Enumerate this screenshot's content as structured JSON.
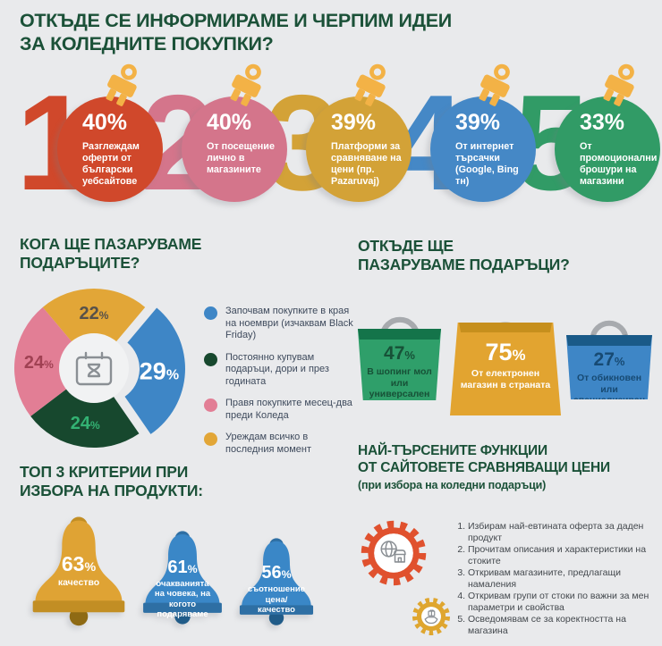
{
  "page": {
    "background": "#E9EAEC",
    "heading_color": "#1B5138"
  },
  "title": {
    "line1_regular": "ОТКЪДЕ ",
    "line1_bold": "СЕ ИНФОРМИРАМЕ И ЧЕРПИМ ИДЕИ",
    "line2": "ЗА КОЛЕДНИТЕ ПОКУПКИ?"
  },
  "sources": {
    "items": [
      {
        "num": "1",
        "pct": "40%",
        "desc": "Разглеждам оферти от български уебсайтове",
        "color": "#D0482B",
        "cap_color": "#F3B246"
      },
      {
        "num": "2",
        "pct": "40%",
        "desc": "От посещение лично в магазините",
        "color": "#D4758B",
        "cap_color": "#F3B246"
      },
      {
        "num": "3",
        "pct": "39%",
        "desc": "Платформи за сравняване на цени (пр. Pazaruvaj)",
        "color": "#D3A237",
        "cap_color": "#F3B246"
      },
      {
        "num": "4",
        "pct": "39%",
        "desc": "От интернет търсачки (Google, Bing тн)",
        "color": "#4588C6",
        "cap_color": "#F3B246"
      },
      {
        "num": "5",
        "pct": "33%",
        "desc": "От промоционални брошури на магазини",
        "color": "#319B66",
        "cap_color": "#F3B246"
      }
    ]
  },
  "when": {
    "title_bold": "КОГА ЩЕ ПАЗАРУВАМЕ",
    "title_regular": "ПОДАРЪЦИТЕ?",
    "legend": [
      {
        "color": "#3E86C6",
        "text": "Започвам покупките в края на ноември (изчаквам Black Friday)"
      },
      {
        "color": "#17482E",
        "text": "Постоянно купувам подаръци, дори и през годината"
      },
      {
        "color": "#E27E95",
        "text": "Правя покупките месец-два преди Коледа"
      },
      {
        "color": "#E2A637",
        "text": "Уреждам всичко в последния момент"
      }
    ]
  },
  "where": {
    "title_regular": "ОТКЪДЕ ЩЕ",
    "title_bold": "ПАЗАРУВАМЕ ПОДАРЪЦИ?",
    "bags": [
      {
        "pct": "47",
        "unit": "%",
        "desc": "В шопинг мол или универсален магазин",
        "color": "#2F9F6A",
        "flap": "#14744A",
        "text_color": "#175137"
      },
      {
        "pct": "75",
        "unit": "%",
        "desc": "От електронен магазин в страната",
        "color": "#E2A430",
        "flap": "#C68F1D",
        "text_color": "#FFFFFF"
      },
      {
        "pct": "27",
        "unit": "%",
        "desc": "От обикновен или специализиран магазин",
        "color": "#3E86C6",
        "flap": "#1A5A88",
        "text_color": "#174A73"
      }
    ]
  },
  "criteria": {
    "title_bold": "ТОП 3 КРИТЕРИИ ПРИ",
    "title_regular": "ИЗБОРА НА ПРОДУКТИ:",
    "bells": [
      {
        "pct": "63",
        "unit": "%",
        "desc": "качество",
        "color": "#DFA334",
        "rim": "#C28E24",
        "clapper": "#8E6A14"
      },
      {
        "pct": "61",
        "unit": "%",
        "desc": "очакванията на човека, на когото подаряваме",
        "color": "#3A87C7",
        "rim": "#2E6FA4",
        "clapper": "#205B88"
      },
      {
        "pct": "56",
        "unit": "%",
        "desc": "съотношение цена/качество",
        "color": "#3A87C7",
        "rim": "#2E6FA4",
        "clapper": "#205B88"
      }
    ]
  },
  "features": {
    "title_bold": "НАЙ-ТЪРСЕНИТЕ ФУНКЦИИ",
    "title_regular": "ОТ САЙТОВЕТЕ СРАВНЯВАЩИ ЦЕНИ",
    "title_sub": "(при избора на коледни подаръци)",
    "gear_big_color": "#E0512E",
    "gear_small_color": "#DFA62F",
    "items": [
      "Избирам най-евтината оферта за даден продукт",
      "Прочитам описания и характеристики на стоките",
      "Откривам магазините, предлагащи намаления",
      "Откривам групи от стоки по важни за мен параметри и свойства",
      "Осведомявам се за коректността на магазина"
    ]
  },
  "icons": {
    "ornament_cap": "ornament-cap",
    "calendar": "calendar-hourglass",
    "bag_handle": "bag-handle",
    "bell": "bell",
    "gear_big": "gear-globe-shop",
    "gear_small": "gear-hand-gift"
  },
  "chart_data": [
    {
      "type": "bar",
      "title": "ОТКЪДЕ СЕ ИНФОРМИРАМЕ И ЧЕРПИМ ИДЕИ ЗА КОЛЕДНИТЕ ПОКУПКИ?",
      "categories": [
        "Разглеждам оферти от български уебсайтове",
        "От посещение лично в магазините",
        "Платформи за сравняване на цени (пр. Pazaruvaj)",
        "От интернет търсачки (Google, Bing тн)",
        "От промоционални брошури на магазини"
      ],
      "values": [
        40,
        40,
        39,
        39,
        33
      ],
      "unit": "%"
    },
    {
      "type": "pie",
      "title": "КОГА ЩЕ ПАЗАРУВАМЕ ПОДАРЪЦИТЕ?",
      "labels": [
        "Уреждам всичко в последния момент",
        "Започвам покупките в края на ноември (изчаквам Black Friday)",
        "Постоянно купувам подаръци, дори и през годината",
        "Правя покупките месец-два преди Коледа"
      ],
      "values": [
        22,
        29,
        24,
        24
      ],
      "unit": "%",
      "legend_position": "right",
      "render": {
        "slices": [
          {
            "value": 22,
            "color": "#E2A637",
            "label_color": "#57514A"
          },
          {
            "value": 29,
            "color": "#3E86C6",
            "label_color": "#FFFFFF",
            "exploded": true,
            "big": true
          },
          {
            "value": 24,
            "color": "#17482E",
            "label_color": "#33B273"
          },
          {
            "value": 24,
            "color": "#E27E95",
            "label_color": "#A04153"
          }
        ],
        "center_bg": "#F1F2F3",
        "icon_color": "#8A8F94"
      }
    },
    {
      "type": "bar",
      "title": "ОТКЪДЕ ЩЕ ПАЗАРУВАМЕ ПОДАРЪЦИ?",
      "categories": [
        "В шопинг мол или универсален магазин",
        "От електронен магазин в страната",
        "От обикновен или специализиран магазин"
      ],
      "values": [
        47,
        75,
        27
      ],
      "unit": "%"
    },
    {
      "type": "bar",
      "title": "ТОП 3 КРИТЕРИИ ПРИ ИЗБОРА НА ПРОДУКТИ",
      "categories": [
        "качество",
        "очакванията на човека, на когото подаряваме",
        "съотношение цена/качество"
      ],
      "values": [
        63,
        61,
        56
      ],
      "unit": "%"
    }
  ]
}
